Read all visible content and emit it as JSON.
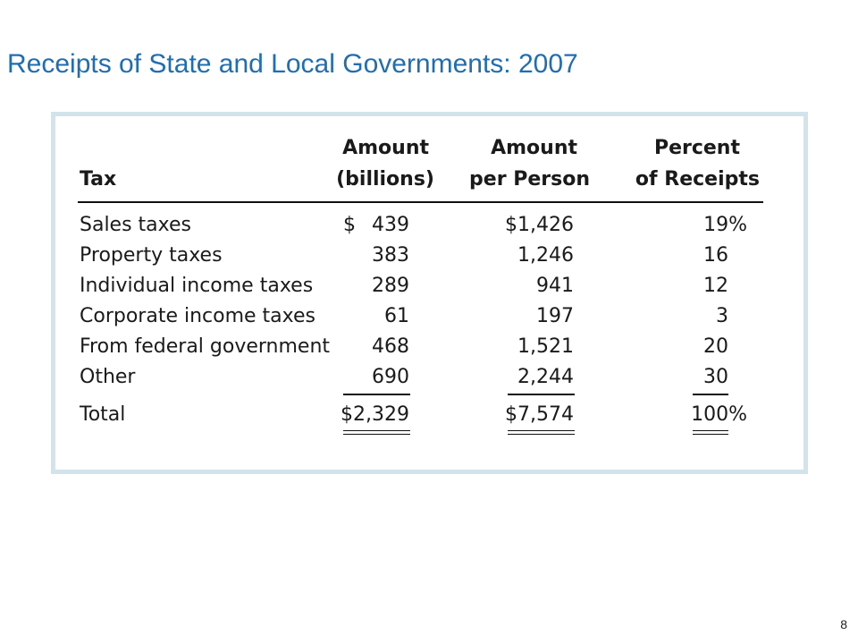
{
  "title": "Receipts of State and Local Governments: 2007",
  "page_number": "8",
  "table": {
    "headers": {
      "tax": "Tax",
      "amount_line1": "Amount",
      "amount_line2": "(billions)",
      "per_person_line1": "Amount",
      "per_person_line2": "per Person",
      "percent_line1": "Percent",
      "percent_line2": "of Receipts"
    },
    "rows": [
      {
        "tax": "Sales taxes",
        "amount": "439",
        "per_person": "$1,426",
        "percent": "19%"
      },
      {
        "tax": "Property taxes",
        "amount": "383",
        "per_person": "1,246",
        "percent": "16"
      },
      {
        "tax": "Individual income taxes",
        "amount": "289",
        "per_person": "941",
        "percent": "12"
      },
      {
        "tax": "Corporate income taxes",
        "amount": "61",
        "per_person": "197",
        "percent": "3"
      },
      {
        "tax": "From federal government",
        "amount": "468",
        "per_person": "1,521",
        "percent": "20"
      },
      {
        "tax": "Other",
        "amount": "690",
        "per_person": "2,244",
        "percent": "30"
      }
    ],
    "currency_symbol": "$",
    "total": {
      "tax": "Total",
      "amount": "$2,329",
      "per_person": "$7,574",
      "percent": "100%"
    }
  }
}
